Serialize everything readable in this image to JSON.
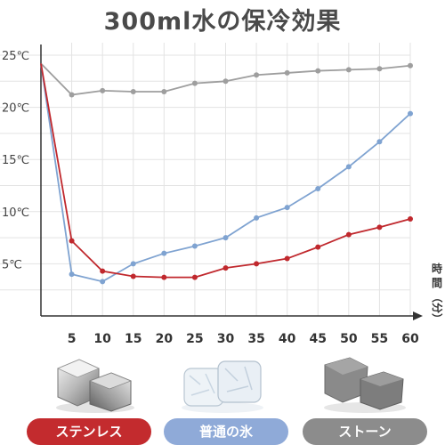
{
  "title": "300ml水の保冷効果",
  "chart_data": {
    "type": "line",
    "x": [
      0,
      5,
      10,
      15,
      20,
      25,
      30,
      35,
      40,
      45,
      50,
      55,
      60
    ],
    "xticks": [
      "5",
      "10",
      "15",
      "20",
      "25",
      "30",
      "35",
      "40",
      "45",
      "50",
      "55",
      "60"
    ],
    "yticks": [
      "25℃",
      "20℃",
      "15℃",
      "10℃",
      "5℃"
    ],
    "ytick_values": [
      25,
      20,
      15,
      10,
      5
    ],
    "ylim": [
      0,
      25
    ],
    "xlim": [
      0,
      60
    ],
    "xlabel": [
      "時",
      "間",
      "（分）"
    ],
    "grid": true,
    "series": [
      {
        "key": "stone",
        "color": "#9e9e9e",
        "values": [
          24.2,
          21.2,
          21.6,
          21.5,
          21.5,
          22.3,
          22.5,
          23.1,
          23.3,
          23.5,
          23.6,
          23.7,
          24.0
        ]
      },
      {
        "key": "ice",
        "color": "#7fa3d1",
        "values": [
          24.2,
          4.0,
          3.3,
          5.0,
          6.0,
          6.7,
          7.5,
          9.4,
          10.4,
          12.2,
          14.3,
          16.7,
          19.4
        ]
      },
      {
        "key": "steel",
        "color": "#c0282d",
        "values": [
          24.2,
          7.2,
          4.3,
          3.8,
          3.7,
          3.7,
          4.6,
          5.0,
          5.5,
          6.6,
          7.8,
          8.5,
          9.3
        ]
      }
    ]
  },
  "legend": [
    {
      "label": "ステンレス",
      "color": "#c32b2e",
      "icon": "stainless-cube"
    },
    {
      "label": "普通の氷",
      "color": "#8faad8",
      "icon": "ice-cube"
    },
    {
      "label": "ストーン",
      "color": "#8c8c8c",
      "icon": "stone-cube"
    }
  ]
}
